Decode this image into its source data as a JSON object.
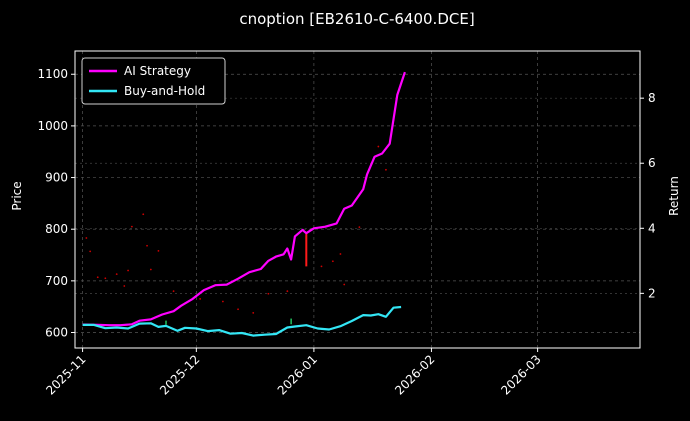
{
  "chart_data": {
    "type": "line",
    "title": "cnoption [EB2610-C-6400.DCE]",
    "ylabel_left": "Price",
    "ylabel_right": "Return",
    "x_range": [
      "2025-10-30",
      "2026-03-28"
    ],
    "ylim_left": [
      570,
      1145
    ],
    "ylim_right": [
      0.32,
      9.45
    ],
    "x_ticks": [
      "2025-11-01",
      "2025-12-01",
      "2026-01-01",
      "2026-02-01",
      "2026-03-01"
    ],
    "x_tick_labels": [
      "2025-11",
      "2025-12",
      "2026-01",
      "2026-02",
      "2026-03"
    ],
    "y_ticks_left": [
      600,
      700,
      800,
      900,
      1000,
      1100
    ],
    "y_ticks_right": [
      2,
      4,
      6,
      8
    ],
    "grid": true,
    "legend_position": "top-left",
    "series": [
      {
        "name": "AI Strategy",
        "color": "#ff00ff",
        "axis": "right",
        "points": [
          [
            "2025-11-01",
            1.04
          ],
          [
            "2025-11-05",
            1.03
          ],
          [
            "2025-11-08",
            1.02
          ],
          [
            "2025-11-11",
            1.02
          ],
          [
            "2025-11-14",
            1.05
          ],
          [
            "2025-11-16",
            1.16
          ],
          [
            "2025-11-19",
            1.2
          ],
          [
            "2025-11-22",
            1.35
          ],
          [
            "2025-11-25",
            1.45
          ],
          [
            "2025-11-27",
            1.62
          ],
          [
            "2025-11-30",
            1.83
          ],
          [
            "2025-12-03",
            2.1
          ],
          [
            "2025-12-06",
            2.25
          ],
          [
            "2025-12-09",
            2.27
          ],
          [
            "2025-12-12",
            2.45
          ],
          [
            "2025-12-15",
            2.65
          ],
          [
            "2025-12-18",
            2.75
          ],
          [
            "2025-12-20",
            3.0
          ],
          [
            "2025-12-22",
            3.13
          ],
          [
            "2025-12-24",
            3.2
          ],
          [
            "2025-12-25",
            3.38
          ],
          [
            "2025-12-26",
            3.04
          ],
          [
            "2025-12-27",
            3.75
          ],
          [
            "2025-12-29",
            3.95
          ],
          [
            "2025-12-30",
            3.85
          ],
          [
            "2026-01-01",
            4.0
          ],
          [
            "2026-01-04",
            4.05
          ],
          [
            "2026-01-07",
            4.15
          ],
          [
            "2026-01-09",
            4.6
          ],
          [
            "2026-01-11",
            4.7
          ],
          [
            "2026-01-14",
            5.2
          ],
          [
            "2026-01-15",
            5.65
          ],
          [
            "2026-01-17",
            6.2
          ],
          [
            "2026-01-19",
            6.3
          ],
          [
            "2026-01-21",
            6.6
          ],
          [
            "2026-01-23",
            8.1
          ],
          [
            "2026-01-25",
            8.8
          ]
        ]
      },
      {
        "name": "Buy-and-Hold",
        "color": "#33e6f5",
        "axis": "right",
        "points": [
          [
            "2025-11-01",
            1.03
          ],
          [
            "2025-11-04",
            1.03
          ],
          [
            "2025-11-07",
            0.93
          ],
          [
            "2025-11-10",
            0.95
          ],
          [
            "2025-11-13",
            0.92
          ],
          [
            "2025-11-16",
            1.07
          ],
          [
            "2025-11-19",
            1.08
          ],
          [
            "2025-11-21",
            0.97
          ],
          [
            "2025-11-23",
            1.0
          ],
          [
            "2025-11-26",
            0.85
          ],
          [
            "2025-11-28",
            0.94
          ],
          [
            "2025-12-01",
            0.92
          ],
          [
            "2025-12-04",
            0.84
          ],
          [
            "2025-12-07",
            0.87
          ],
          [
            "2025-12-10",
            0.76
          ],
          [
            "2025-12-13",
            0.78
          ],
          [
            "2025-12-16",
            0.7
          ],
          [
            "2025-12-19",
            0.73
          ],
          [
            "2025-12-22",
            0.75
          ],
          [
            "2025-12-25",
            0.95
          ],
          [
            "2025-12-27",
            0.98
          ],
          [
            "2025-12-30",
            1.02
          ],
          [
            "2026-01-02",
            0.92
          ],
          [
            "2026-01-05",
            0.89
          ],
          [
            "2026-01-08",
            0.99
          ],
          [
            "2026-01-11",
            1.15
          ],
          [
            "2026-01-14",
            1.33
          ],
          [
            "2026-01-16",
            1.32
          ],
          [
            "2026-01-18",
            1.36
          ],
          [
            "2026-01-20",
            1.28
          ],
          [
            "2026-01-22",
            1.56
          ],
          [
            "2026-01-24",
            1.58
          ]
        ]
      }
    ],
    "buy_marks": [
      {
        "x": "2025-11-23",
        "low": 615,
        "high": 623
      },
      {
        "x": "2025-12-26",
        "low": 616,
        "high": 627
      }
    ],
    "sell_marks": [
      {
        "x": "2025-12-30",
        "low": 728,
        "high": 791
      }
    ],
    "price_dots": [
      [
        "2025-11-02",
        783
      ],
      [
        "2025-11-03",
        757
      ],
      [
        "2025-11-05",
        707
      ],
      [
        "2025-11-07",
        705
      ],
      [
        "2025-11-10",
        713
      ],
      [
        "2025-11-12",
        690
      ],
      [
        "2025-11-13",
        720
      ],
      [
        "2025-11-14",
        805
      ],
      [
        "2025-11-17",
        829
      ],
      [
        "2025-11-18",
        768
      ],
      [
        "2025-11-19",
        722
      ],
      [
        "2025-11-21",
        758
      ],
      [
        "2025-11-25",
        680
      ],
      [
        "2025-12-02",
        665
      ],
      [
        "2025-12-08",
        660
      ],
      [
        "2025-12-12",
        645
      ],
      [
        "2025-12-16",
        638
      ],
      [
        "2025-12-20",
        675
      ],
      [
        "2025-12-25",
        680
      ],
      [
        "2026-01-03",
        728
      ],
      [
        "2026-01-06",
        738
      ],
      [
        "2026-01-08",
        752
      ],
      [
        "2026-01-09",
        693
      ],
      [
        "2026-01-13",
        804
      ],
      [
        "2026-01-18",
        960
      ],
      [
        "2026-01-20",
        915
      ]
    ]
  }
}
